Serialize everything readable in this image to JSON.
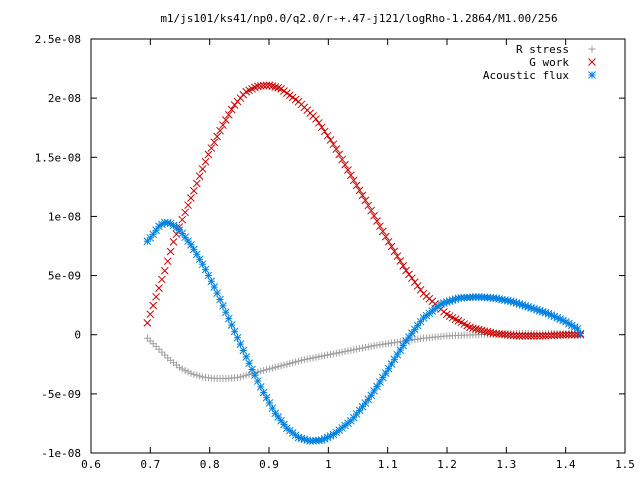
{
  "chart_data": {
    "type": "scatter",
    "title": "m1/js101/ks41/np0.0/q2.0/r-+.47-j121/logRho-1.2864/M1.00/256",
    "xlabel": "",
    "ylabel": "",
    "xlim": [
      0.6,
      1.5
    ],
    "ylim": [
      -1e-08,
      2.5e-08
    ],
    "grid": false,
    "legend_position": "top-right",
    "x_ticks": [
      "0.6",
      "0.7",
      "0.8",
      "0.9",
      "1",
      "1.1",
      "1.2",
      "1.3",
      "1.4",
      "1.5"
    ],
    "x_tick_values": [
      0.6,
      0.7,
      0.8,
      0.9,
      1.0,
      1.1,
      1.2,
      1.3,
      1.4,
      1.5
    ],
    "y_ticks": [
      "-1e-08",
      "-5e-09",
      "0",
      "5e-09",
      "1e-08",
      "1.5e-08",
      "2e-08",
      "2.5e-08"
    ],
    "y_tick_values": [
      -1e-08,
      -5e-09,
      0,
      5e-09,
      1e-08,
      1.5e-08,
      2e-08,
      2.5e-08
    ],
    "series": [
      {
        "name": "R stress",
        "marker": "plus",
        "color": "#a0a0a4",
        "points": [
          [
            0.695,
            -3e-10
          ],
          [
            0.71,
            -1e-09
          ],
          [
            0.73,
            -2e-09
          ],
          [
            0.75,
            -2.8e-09
          ],
          [
            0.77,
            -3.3e-09
          ],
          [
            0.79,
            -3.6e-09
          ],
          [
            0.81,
            -3.7e-09
          ],
          [
            0.83,
            -3.7e-09
          ],
          [
            0.85,
            -3.6e-09
          ],
          [
            0.87,
            -3.3e-09
          ],
          [
            0.9,
            -2.9e-09
          ],
          [
            0.93,
            -2.5e-09
          ],
          [
            0.96,
            -2.1e-09
          ],
          [
            1.0,
            -1.7e-09
          ],
          [
            1.04,
            -1.3e-09
          ],
          [
            1.08,
            -9e-10
          ],
          [
            1.12,
            -6e-10
          ],
          [
            1.16,
            -3e-10
          ],
          [
            1.2,
            -1e-10
          ],
          [
            1.25,
            0.0
          ],
          [
            1.3,
            1e-10
          ],
          [
            1.35,
            1e-10
          ],
          [
            1.4,
            1e-10
          ],
          [
            1.425,
            1e-10
          ]
        ]
      },
      {
        "name": "G work",
        "marker": "x",
        "color": "#cc0000",
        "points": [
          [
            0.695,
            1e-09
          ],
          [
            0.705,
            2.5e-09
          ],
          [
            0.715,
            4e-09
          ],
          [
            0.725,
            5.5e-09
          ],
          [
            0.74,
            8e-09
          ],
          [
            0.76,
            1.05e-08
          ],
          [
            0.78,
            1.3e-08
          ],
          [
            0.8,
            1.55e-08
          ],
          [
            0.82,
            1.75e-08
          ],
          [
            0.84,
            1.93e-08
          ],
          [
            0.86,
            2.05e-08
          ],
          [
            0.88,
            2.1e-08
          ],
          [
            0.9,
            2.11e-08
          ],
          [
            0.92,
            2.08e-08
          ],
          [
            0.95,
            1.97e-08
          ],
          [
            0.98,
            1.82e-08
          ],
          [
            1.01,
            1.6e-08
          ],
          [
            1.04,
            1.33e-08
          ],
          [
            1.07,
            1.07e-08
          ],
          [
            1.1,
            8e-09
          ],
          [
            1.13,
            5.5e-09
          ],
          [
            1.16,
            3.5e-09
          ],
          [
            1.2,
            1.7e-09
          ],
          [
            1.24,
            6e-10
          ],
          [
            1.28,
            1e-10
          ],
          [
            1.32,
            -1e-10
          ],
          [
            1.36,
            -1e-10
          ],
          [
            1.4,
            0.0
          ],
          [
            1.425,
            0.0
          ]
        ]
      },
      {
        "name": "Acoustic flux",
        "marker": "star",
        "color": "#0080e0",
        "points": [
          [
            0.695,
            7.9e-09
          ],
          [
            0.705,
            8.5e-09
          ],
          [
            0.715,
            9.2e-09
          ],
          [
            0.725,
            9.5e-09
          ],
          [
            0.735,
            9.4e-09
          ],
          [
            0.75,
            8.8e-09
          ],
          [
            0.77,
            7.5e-09
          ],
          [
            0.79,
            5.8e-09
          ],
          [
            0.81,
            3.8e-09
          ],
          [
            0.83,
            1.6e-09
          ],
          [
            0.85,
            -6e-10
          ],
          [
            0.87,
            -2.8e-09
          ],
          [
            0.89,
            -4.8e-09
          ],
          [
            0.91,
            -6.6e-09
          ],
          [
            0.93,
            -7.9e-09
          ],
          [
            0.95,
            -8.7e-09
          ],
          [
            0.97,
            -9e-09
          ],
          [
            0.99,
            -8.9e-09
          ],
          [
            1.01,
            -8.4e-09
          ],
          [
            1.04,
            -7.2e-09
          ],
          [
            1.07,
            -5.3e-09
          ],
          [
            1.1,
            -3e-09
          ],
          [
            1.13,
            -6e-10
          ],
          [
            1.16,
            1.4e-09
          ],
          [
            1.19,
            2.6e-09
          ],
          [
            1.22,
            3.1e-09
          ],
          [
            1.25,
            3.2e-09
          ],
          [
            1.28,
            3.1e-09
          ],
          [
            1.31,
            2.8e-09
          ],
          [
            1.34,
            2.3e-09
          ],
          [
            1.37,
            1.8e-09
          ],
          [
            1.4,
            1.1e-09
          ],
          [
            1.42,
            5e-10
          ],
          [
            1.425,
            1e-10
          ]
        ]
      }
    ]
  }
}
